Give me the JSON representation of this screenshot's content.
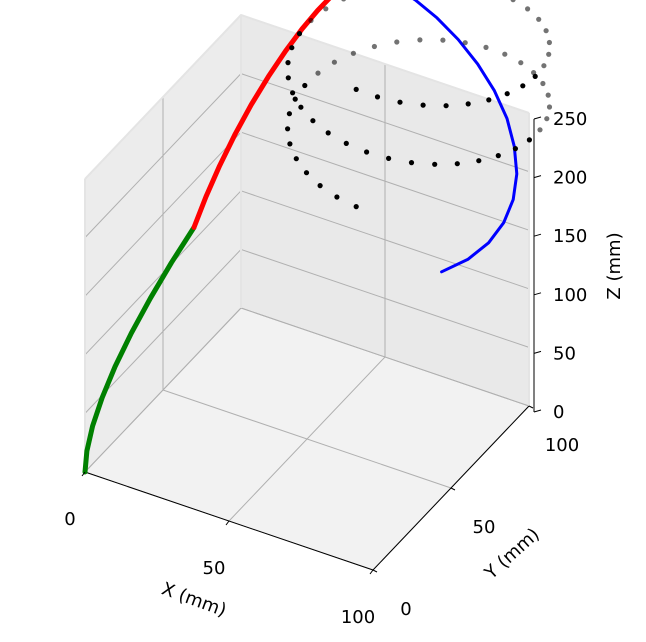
{
  "chart_data": {
    "type": "3d-line-scatter",
    "xlabel": "X (mm)",
    "ylabel": "Y (mm)",
    "zlabel": "Z (mm)",
    "xlim": [
      0,
      100
    ],
    "ylim": [
      0,
      100
    ],
    "zlim": [
      0,
      250
    ],
    "x_ticks": [
      0,
      50,
      100
    ],
    "y_ticks": [
      0,
      50,
      100
    ],
    "z_ticks": [
      0,
      50,
      100,
      150,
      200,
      250
    ],
    "x_tick_labels": [
      "0",
      "50",
      "100"
    ],
    "y_tick_labels": [
      "0",
      "50",
      "100"
    ],
    "z_tick_labels": [
      "0",
      "50",
      "100",
      "150",
      "200",
      "250"
    ],
    "grid": true,
    "pane_color": "#f2f2f2",
    "grid_color": "#b0b0b0",
    "series": [
      {
        "color": "#008000",
        "style": "line",
        "x": [
          0,
          0,
          0,
          0,
          0,
          0,
          0,
          0,
          0
        ],
        "y": [
          0,
          1.2,
          4.9,
          11.0,
          19.3,
          29.7,
          41.9,
          55.4,
          69.9
        ],
        "z": [
          0,
          16.3,
          32.4,
          48.1,
          63.0,
          76.9,
          89.7,
          101.1,
          110.9
        ]
      },
      {
        "color": "#ff0000",
        "style": "line",
        "x": [
          0,
          0,
          0,
          0,
          0,
          0,
          0,
          0,
          0,
          0,
          0,
          0,
          0
        ],
        "y": [
          69.9,
          77.5,
          86.3,
          96.1,
          106.6,
          117.6,
          128.5,
          139.1,
          149.1,
          158.0,
          165.6,
          171.6,
          175.9
        ],
        "z": [
          110.9,
          126.3,
          140.5,
          153.4,
          164.3,
          173.0,
          179.3,
          183.3,
          185.1,
          185.0,
          183.5,
          181.2,
          178.5
        ]
      },
      {
        "color": "#0000ff",
        "style": "line",
        "x": [
          0,
          4.0,
          10.2,
          18.1,
          27.1,
          36.8,
          46.7,
          56.3,
          65.0,
          72.3,
          78.1,
          81.8,
          83.2,
          82.3,
          78.9,
          73.0
        ],
        "y": [
          175.9,
          178.4,
          179.2,
          178.3,
          175.6,
          171.3,
          165.5,
          158.5,
          150.5,
          141.7,
          132.6,
          123.5,
          114.8,
          106.8,
          99.7,
          93.8
        ],
        "z": [
          178.5,
          175.4,
          172.1,
          168.4,
          164.4,
          160.1,
          155.5,
          150.6,
          145.4,
          139.9,
          134.1,
          128.0,
          121.6,
          114.9,
          107.9,
          100.6
        ]
      },
      {
        "color": "#000000",
        "style": "points",
        "helix": {
          "center_x": 40,
          "center_y": 140,
          "radius": 40,
          "z_start": 220,
          "z_end": 120,
          "points": 72,
          "turns": 2
        }
      }
    ]
  }
}
